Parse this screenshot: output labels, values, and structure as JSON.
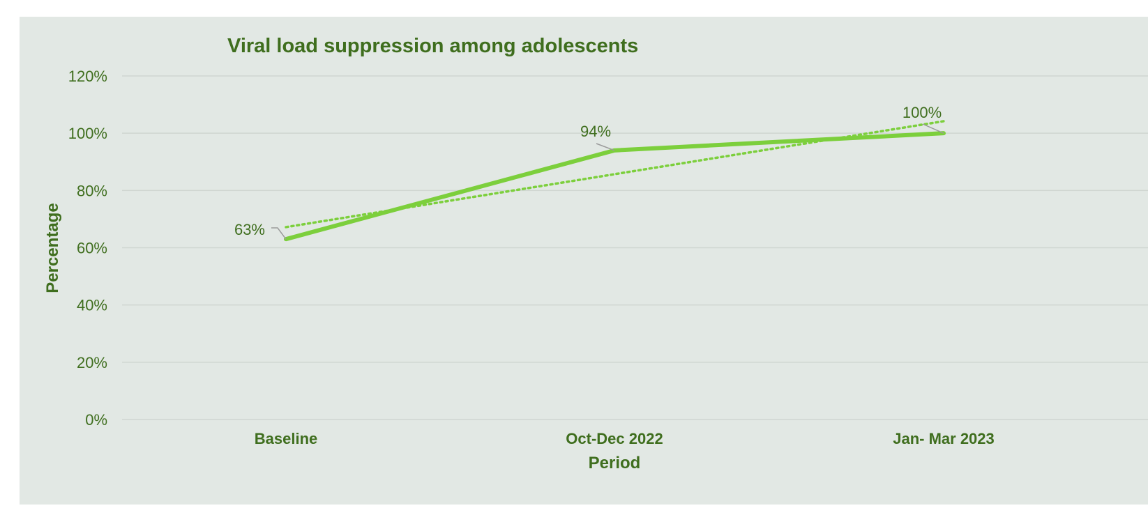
{
  "chart_data": {
    "type": "line",
    "title": "Viral load suppression among adolescents",
    "xlabel": "Period",
    "ylabel": "Percentage",
    "categories": [
      "Baseline",
      "Oct-Dec 2022",
      "Jan- Mar 2023"
    ],
    "series": [
      {
        "values": [
          63,
          94,
          100
        ],
        "labels": [
          "63%",
          "94%",
          "100%"
        ]
      }
    ],
    "trendline": {
      "type": "linear",
      "style": "dotted",
      "values": [
        67.2,
        85.7,
        104.2
      ]
    },
    "ylim": [
      0,
      120
    ],
    "yticks": [
      0,
      20,
      40,
      60,
      80,
      100,
      120
    ],
    "ytick_labels": [
      "0%",
      "20%",
      "40%",
      "60%",
      "80%",
      "100%",
      "120%"
    ],
    "grid": true,
    "legend": "none",
    "colors": {
      "background": "#e2e8e4",
      "line": "#7ccf3c",
      "text": "#3f6e1e",
      "grid": "#cfd6d1",
      "leader": "#9a9a9a"
    }
  }
}
